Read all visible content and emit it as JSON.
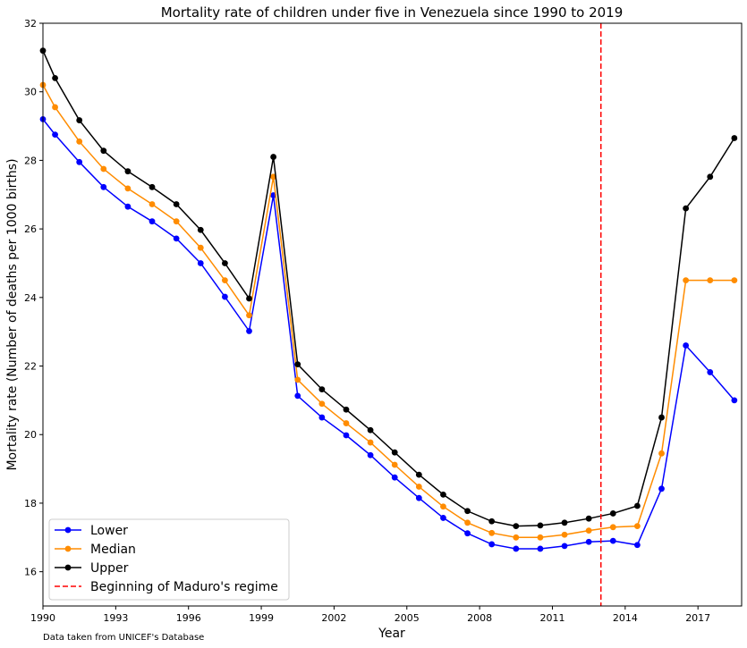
{
  "chart_data": {
    "type": "line",
    "title": "Mortality rate of children under five in Venezuela since 1990 to 2019",
    "xlabel": "Year",
    "ylabel": "Mortality rate (Number of deaths per 1000 births)",
    "xlim": [
      1990,
      2018.8
    ],
    "ylim": [
      15,
      32
    ],
    "xticks": [
      1990,
      1993,
      1996,
      1999,
      2002,
      2005,
      2008,
      2011,
      2014,
      2017
    ],
    "yticks": [
      16,
      18,
      20,
      22,
      24,
      26,
      28,
      30,
      32
    ],
    "grid": false,
    "legend_position": "lower-left",
    "footnote": "Data taken from UNICEF's Database",
    "x": [
      1990,
      1990.5,
      1991.5,
      1992.5,
      1993.5,
      1994.5,
      1995.5,
      1996.5,
      1997.5,
      1998.5,
      1999.5,
      2000.5,
      2001.5,
      2002.5,
      2003.5,
      2004.5,
      2005.5,
      2006.5,
      2007.5,
      2008.5,
      2009.5,
      2010.5,
      2011.5,
      2012.5,
      2013.5,
      2014.5,
      2015.5,
      2016.5,
      2017.5,
      2018.5
    ],
    "series": [
      {
        "name": "Lower",
        "color": "#0000ff",
        "markers": true,
        "values": [
          29.2,
          28.75,
          27.95,
          27.22,
          26.65,
          26.22,
          25.72,
          25.0,
          24.02,
          23.02,
          26.98,
          21.13,
          20.5,
          19.98,
          19.4,
          18.75,
          18.15,
          17.57,
          17.12,
          16.8,
          16.67,
          16.67,
          16.75,
          16.87,
          16.9,
          16.78,
          18.42,
          22.6,
          21.82,
          21.0
        ]
      },
      {
        "name": "Median",
        "color": "#ff8c00",
        "markers": true,
        "values": [
          30.2,
          29.55,
          28.55,
          27.75,
          27.18,
          26.72,
          26.22,
          25.45,
          24.5,
          23.48,
          27.52,
          21.6,
          20.9,
          20.33,
          19.77,
          19.12,
          18.48,
          17.9,
          17.43,
          17.13,
          17.0,
          17.0,
          17.08,
          17.2,
          17.3,
          17.33,
          19.45,
          24.5,
          24.5,
          24.5
        ]
      },
      {
        "name": "Upper",
        "color": "#000000",
        "markers": true,
        "values": [
          31.2,
          30.4,
          29.17,
          28.28,
          27.68,
          27.22,
          26.72,
          25.97,
          25.0,
          23.97,
          28.1,
          22.05,
          21.32,
          20.73,
          20.13,
          19.48,
          18.83,
          18.25,
          17.77,
          17.47,
          17.33,
          17.35,
          17.43,
          17.55,
          17.7,
          17.92,
          20.5,
          26.6,
          27.52,
          28.65
        ]
      }
    ],
    "vlines": [
      {
        "name": "Beginning of Maduro's regime",
        "x": 2013,
        "color": "#ff0000",
        "style": "dashed"
      }
    ]
  }
}
